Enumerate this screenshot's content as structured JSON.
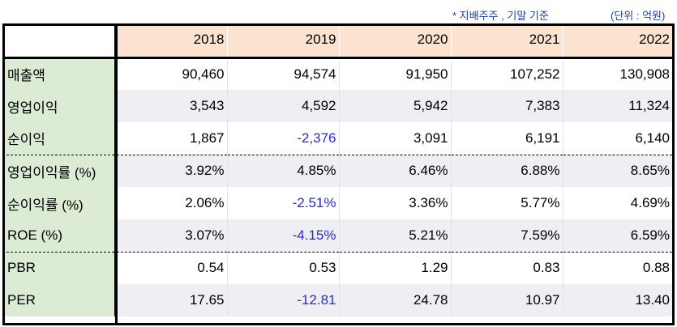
{
  "notes": {
    "basis": "* 지배주주 , 기말 기준",
    "unit": "(단위 : 억원)"
  },
  "table": {
    "years": [
      "2018",
      "2019",
      "2020",
      "2021",
      "2022"
    ],
    "rows": [
      {
        "label": "매출액",
        "values": [
          "90,460",
          "94,574",
          "91,950",
          "107,252",
          "130,908"
        ]
      },
      {
        "label": "영업이익",
        "values": [
          "3,543",
          "4,592",
          "5,942",
          "7,383",
          "11,324"
        ]
      },
      {
        "label": "순이익",
        "values": [
          "1,867",
          "-2,376",
          "3,091",
          "6,191",
          "6,140"
        ]
      },
      {
        "label": "영업이익률 (%)",
        "values": [
          "3.92%",
          "4.85%",
          "6.46%",
          "6.88%",
          "8.65%"
        ]
      },
      {
        "label": "순이익률 (%)",
        "values": [
          "2.06%",
          "-2.51%",
          "3.36%",
          "5.77%",
          "4.69%"
        ]
      },
      {
        "label": "ROE (%)",
        "values": [
          "3.07%",
          "-4.15%",
          "5.21%",
          "7.59%",
          "6.59%"
        ]
      },
      {
        "label": "PBR",
        "values": [
          "0.54",
          "0.53",
          "1.29",
          "0.83",
          "0.88"
        ]
      },
      {
        "label": "PER",
        "values": [
          "17.65",
          "-12.81",
          "24.78",
          "10.97",
          "13.40"
        ]
      }
    ]
  },
  "colors": {
    "header_bg": "#fbe3d0",
    "label_bg": "#dcebd3",
    "shaded_row_bg": "#eeeef3",
    "negative_text": "#2a2ad2",
    "note_text": "#1f3f9a"
  }
}
